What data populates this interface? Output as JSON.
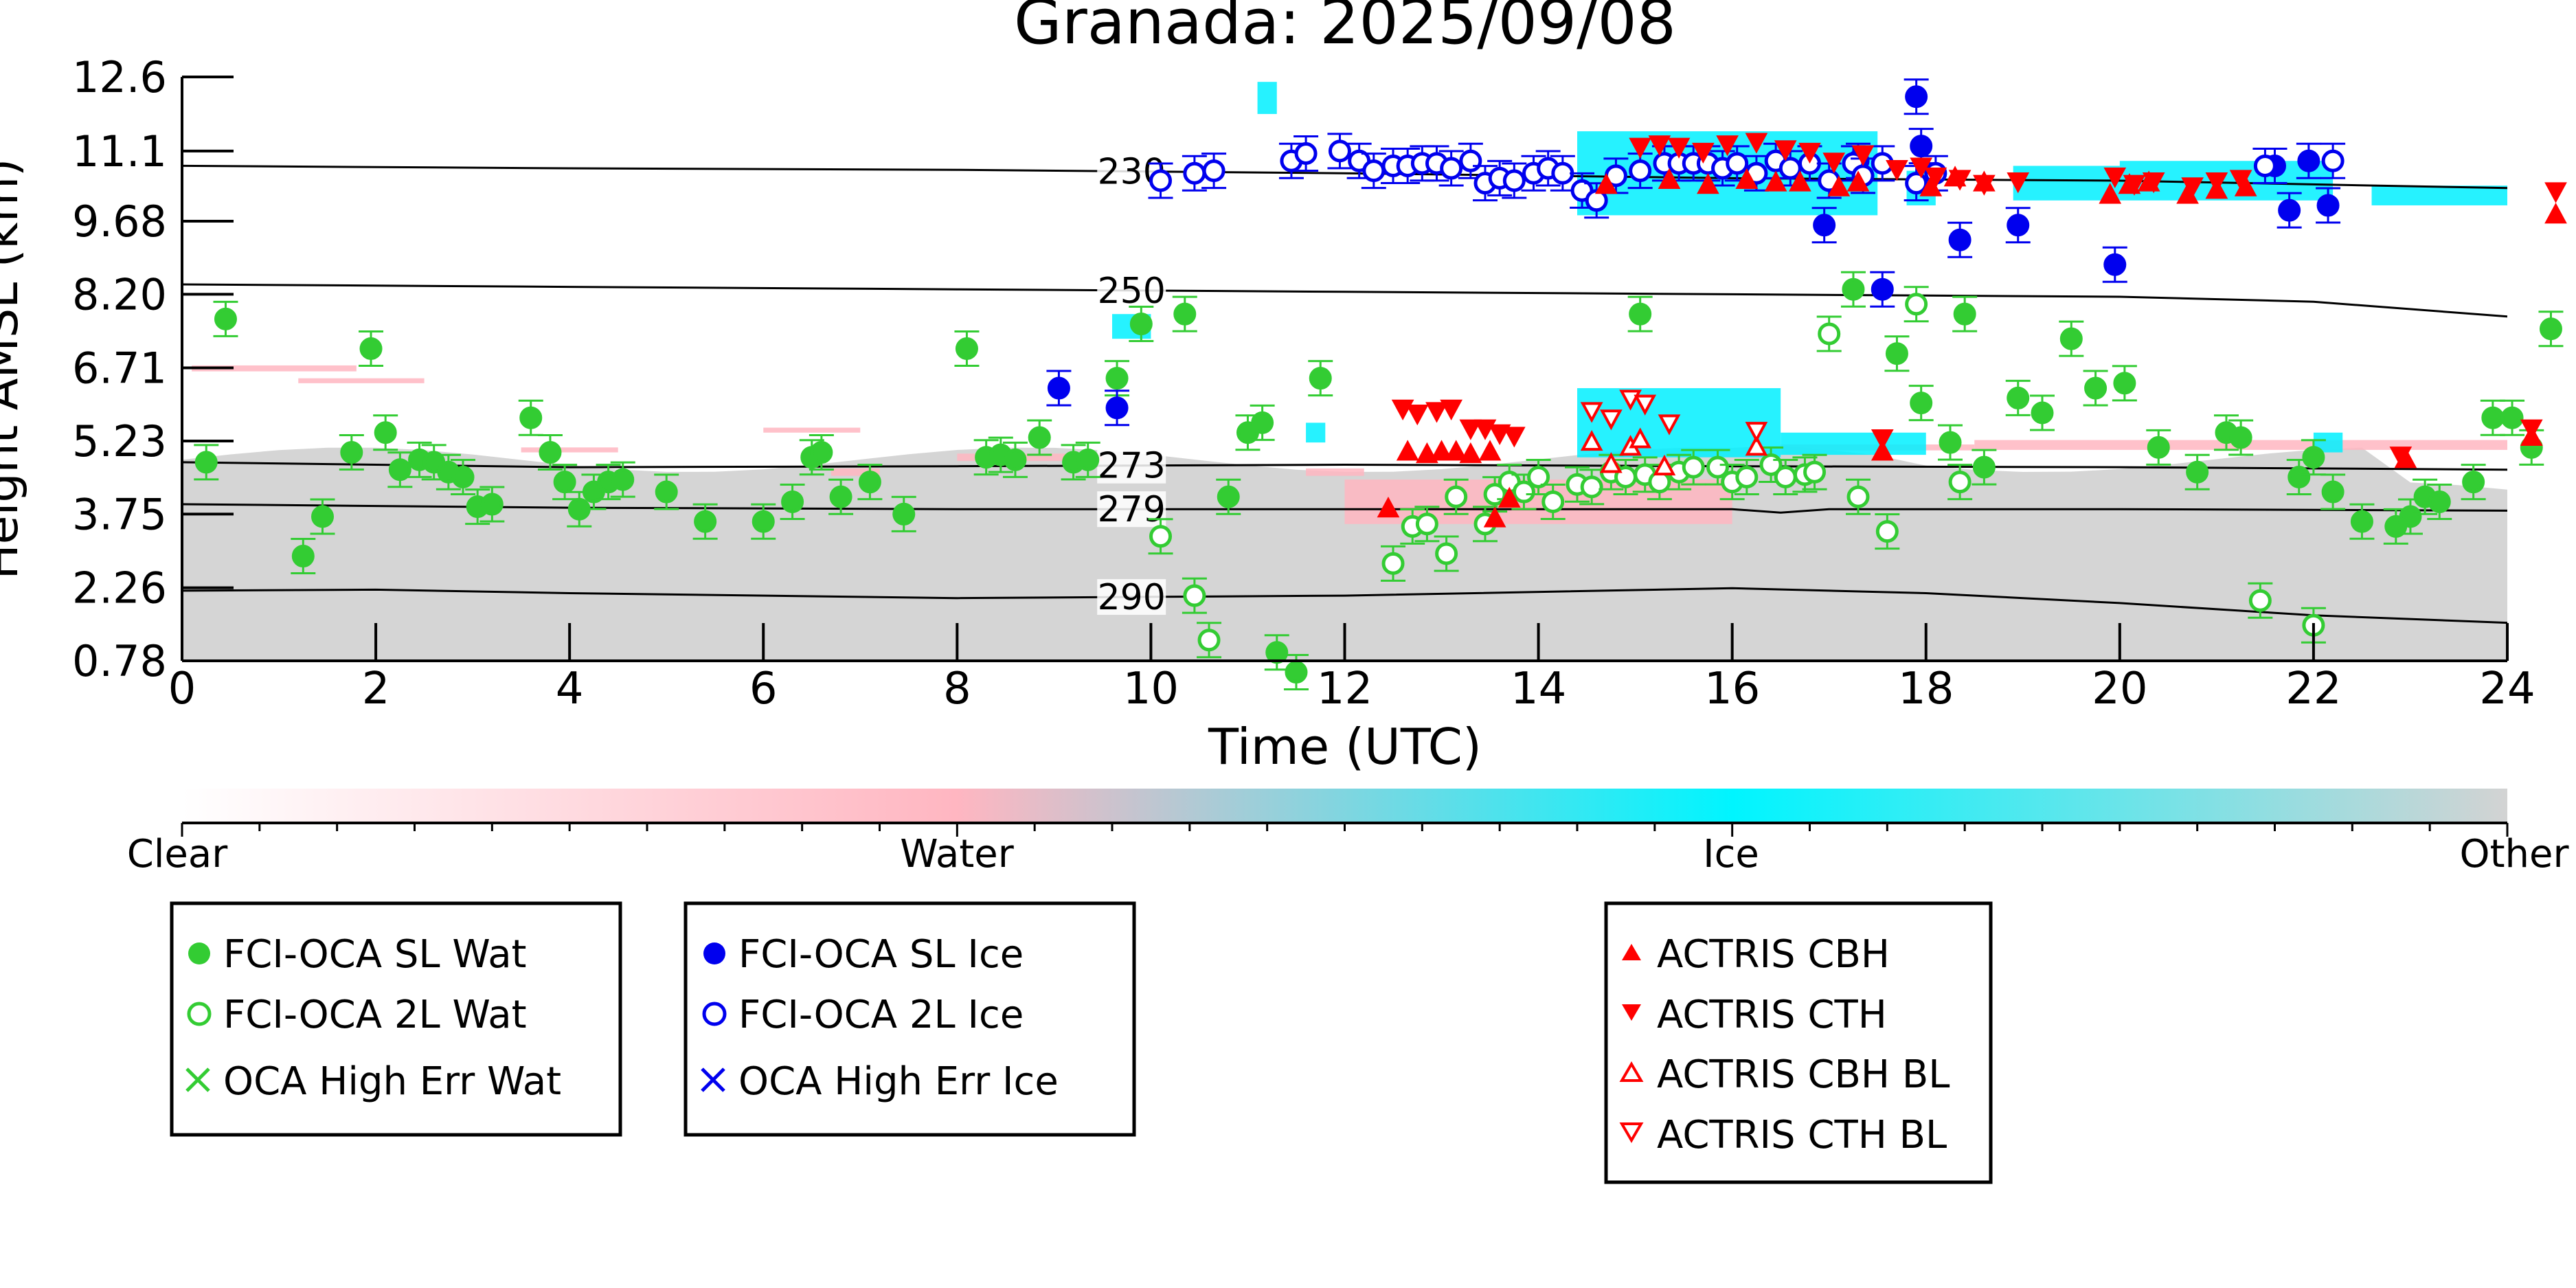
{
  "chart_data": {
    "type": "scatter",
    "title": "Granada: 2025/09/08",
    "xlabel": "Time (UTC)",
    "ylabel": "Height AMSL (km)",
    "xlim": [
      0,
      24
    ],
    "ylim": [
      0.78,
      12.6
    ],
    "x_ticks": [
      "0",
      "2",
      "4",
      "6",
      "8",
      "10",
      "12",
      "14",
      "16",
      "18",
      "20",
      "22",
      "24"
    ],
    "y_ticks": [
      "12.6",
      "11.1",
      "9.68",
      "8.20",
      "6.71",
      "5.23",
      "3.75",
      "2.26",
      "0.78"
    ],
    "grid": false,
    "colorbar": {
      "labels": [
        "Clear",
        "Water",
        "Ice",
        "Other"
      ],
      "stops": [
        "#ffffff",
        "#ffb6c1",
        "#00f5ff",
        "#d3d3d3"
      ]
    },
    "colors": {
      "water": "#33cc33",
      "ice": "#0000ee",
      "actris": "#ff0000",
      "background_other": "#d3d3d3",
      "background_water": "#ffb6c1",
      "background_ice": "#00f0ff"
    },
    "isotherms": [
      {
        "label": "230",
        "points": [
          [
            0,
            10.8
          ],
          [
            4,
            10.75
          ],
          [
            8,
            10.72
          ],
          [
            12,
            10.65
          ],
          [
            16,
            10.55
          ],
          [
            20,
            10.5
          ],
          [
            24,
            10.35
          ]
        ]
      },
      {
        "label": "250",
        "points": [
          [
            0,
            8.4
          ],
          [
            4,
            8.35
          ],
          [
            8,
            8.3
          ],
          [
            12,
            8.25
          ],
          [
            16,
            8.2
          ],
          [
            20,
            8.15
          ],
          [
            22,
            8.05
          ],
          [
            24,
            7.75
          ]
        ]
      },
      {
        "label": "273",
        "points": [
          [
            0,
            4.8
          ],
          [
            4,
            4.7
          ],
          [
            8,
            4.72
          ],
          [
            12,
            4.75
          ],
          [
            16,
            4.72
          ],
          [
            20,
            4.7
          ],
          [
            24,
            4.65
          ]
        ]
      },
      {
        "label": "279",
        "points": [
          [
            0,
            3.95
          ],
          [
            4,
            3.88
          ],
          [
            8,
            3.85
          ],
          [
            12,
            3.85
          ],
          [
            16,
            3.85
          ],
          [
            16.5,
            3.78
          ],
          [
            17,
            3.85
          ],
          [
            20,
            3.85
          ],
          [
            24,
            3.82
          ]
        ]
      },
      {
        "label": "290",
        "points": [
          [
            0,
            2.2
          ],
          [
            2,
            2.22
          ],
          [
            4,
            2.15
          ],
          [
            8,
            2.05
          ],
          [
            12,
            2.1
          ],
          [
            16,
            2.25
          ],
          [
            18,
            2.15
          ],
          [
            20,
            1.95
          ],
          [
            22,
            1.7
          ],
          [
            24,
            1.55
          ]
        ]
      }
    ],
    "series": [
      {
        "name": "FCI-OCA SL Wat",
        "points": [
          [
            0.25,
            4.8
          ],
          [
            0.45,
            7.7
          ],
          [
            1.25,
            2.9
          ],
          [
            1.45,
            3.7
          ],
          [
            1.75,
            5.0
          ],
          [
            1.95,
            7.1
          ],
          [
            2.1,
            5.4
          ],
          [
            2.25,
            4.65
          ],
          [
            2.45,
            4.85
          ],
          [
            2.6,
            4.8
          ],
          [
            2.75,
            4.6
          ],
          [
            2.9,
            4.5
          ],
          [
            3.05,
            3.9
          ],
          [
            3.2,
            3.95
          ],
          [
            3.6,
            5.7
          ],
          [
            3.8,
            5.0
          ],
          [
            3.95,
            4.4
          ],
          [
            4.1,
            3.85
          ],
          [
            4.25,
            4.2
          ],
          [
            4.4,
            4.4
          ],
          [
            4.55,
            4.45
          ],
          [
            5.0,
            4.2
          ],
          [
            5.4,
            3.6
          ],
          [
            6.0,
            3.6
          ],
          [
            6.3,
            4.0
          ],
          [
            6.5,
            4.9
          ],
          [
            6.6,
            5.0
          ],
          [
            6.8,
            4.1
          ],
          [
            7.1,
            4.4
          ],
          [
            7.45,
            3.75
          ],
          [
            8.1,
            7.1
          ],
          [
            8.3,
            4.9
          ],
          [
            8.45,
            4.95
          ],
          [
            8.6,
            4.85
          ],
          [
            8.85,
            5.3
          ],
          [
            9.2,
            4.8
          ],
          [
            9.35,
            4.85
          ],
          [
            9.65,
            6.5
          ],
          [
            9.9,
            7.6
          ],
          [
            10.35,
            7.8
          ],
          [
            10.8,
            4.1
          ],
          [
            11.0,
            5.4
          ],
          [
            11.15,
            5.6
          ],
          [
            11.3,
            0.95
          ],
          [
            11.5,
            0.55
          ],
          [
            11.75,
            6.5
          ],
          [
            15.05,
            7.8
          ],
          [
            17.25,
            8.3
          ],
          [
            17.7,
            7.0
          ],
          [
            17.95,
            6.0
          ],
          [
            18.25,
            5.2
          ],
          [
            18.4,
            7.8
          ],
          [
            18.6,
            4.7
          ],
          [
            18.95,
            6.1
          ],
          [
            19.2,
            5.8
          ],
          [
            19.5,
            7.3
          ],
          [
            19.75,
            6.3
          ],
          [
            20.05,
            6.4
          ],
          [
            20.4,
            5.1
          ],
          [
            20.8,
            4.6
          ],
          [
            21.1,
            5.4
          ],
          [
            21.25,
            5.3
          ],
          [
            21.85,
            4.5
          ],
          [
            22.0,
            4.9
          ],
          [
            22.2,
            4.2
          ],
          [
            22.5,
            3.6
          ],
          [
            22.85,
            3.5
          ],
          [
            23.0,
            3.7
          ],
          [
            23.15,
            4.1
          ],
          [
            23.3,
            4.0
          ],
          [
            23.65,
            4.4
          ],
          [
            23.85,
            5.7
          ],
          [
            24.05,
            5.7
          ],
          [
            24.25,
            5.1
          ],
          [
            24.45,
            7.5
          ]
        ]
      },
      {
        "name": "FCI-OCA 2L Wat",
        "points": [
          [
            10.1,
            3.3
          ],
          [
            10.45,
            2.1
          ],
          [
            10.6,
            1.2
          ],
          [
            12.5,
            2.75
          ],
          [
            12.7,
            3.5
          ],
          [
            12.85,
            3.55
          ],
          [
            13.05,
            2.95
          ],
          [
            13.15,
            4.1
          ],
          [
            13.45,
            3.55
          ],
          [
            13.55,
            4.15
          ],
          [
            13.7,
            4.4
          ],
          [
            13.85,
            4.2
          ],
          [
            14.0,
            4.5
          ],
          [
            14.15,
            4.0
          ],
          [
            14.4,
            4.35
          ],
          [
            14.55,
            4.3
          ],
          [
            14.75,
            4.6
          ],
          [
            14.9,
            4.5
          ],
          [
            15.1,
            4.55
          ],
          [
            15.25,
            4.4
          ],
          [
            15.45,
            4.6
          ],
          [
            15.6,
            4.7
          ],
          [
            15.85,
            4.7
          ],
          [
            16.0,
            4.4
          ],
          [
            16.15,
            4.5
          ],
          [
            16.4,
            4.75
          ],
          [
            16.55,
            4.5
          ],
          [
            16.75,
            4.55
          ],
          [
            16.85,
            4.6
          ],
          [
            17.0,
            7.4
          ],
          [
            17.3,
            4.1
          ],
          [
            17.6,
            3.4
          ],
          [
            17.9,
            8.0
          ],
          [
            18.35,
            4.4
          ],
          [
            21.45,
            2.0
          ],
          [
            22.0,
            1.5
          ]
        ]
      },
      {
        "name": "FCI-OCA SL Ice",
        "points": [
          [
            9.05,
            6.3
          ],
          [
            9.65,
            5.9
          ],
          [
            16.95,
            9.6
          ],
          [
            17.3,
            10.9
          ],
          [
            17.55,
            8.3
          ],
          [
            17.9,
            12.2
          ],
          [
            17.95,
            11.2
          ],
          [
            18.35,
            9.3
          ],
          [
            18.95,
            9.6
          ],
          [
            19.95,
            8.8
          ],
          [
            21.6,
            10.8
          ],
          [
            21.75,
            9.9
          ],
          [
            21.95,
            10.9
          ],
          [
            22.15,
            10.0
          ]
        ]
      },
      {
        "name": "FCI-OCA 2L Ice",
        "points": [
          [
            10.1,
            10.5
          ],
          [
            10.45,
            10.65
          ],
          [
            10.65,
            10.7
          ],
          [
            11.45,
            10.9
          ],
          [
            11.6,
            11.05
          ],
          [
            11.95,
            11.1
          ],
          [
            12.15,
            10.9
          ],
          [
            12.3,
            10.7
          ],
          [
            12.5,
            10.8
          ],
          [
            12.65,
            10.8
          ],
          [
            12.8,
            10.85
          ],
          [
            12.95,
            10.85
          ],
          [
            13.1,
            10.75
          ],
          [
            13.3,
            10.9
          ],
          [
            13.45,
            10.45
          ],
          [
            13.6,
            10.55
          ],
          [
            13.75,
            10.5
          ],
          [
            13.95,
            10.65
          ],
          [
            14.1,
            10.75
          ],
          [
            14.25,
            10.65
          ],
          [
            14.45,
            10.3
          ],
          [
            14.6,
            10.1
          ],
          [
            14.8,
            10.6
          ],
          [
            15.05,
            10.7
          ],
          [
            15.3,
            10.85
          ],
          [
            15.45,
            10.85
          ],
          [
            15.6,
            10.85
          ],
          [
            15.75,
            10.85
          ],
          [
            15.9,
            10.75
          ],
          [
            16.05,
            10.85
          ],
          [
            16.25,
            10.65
          ],
          [
            16.45,
            10.9
          ],
          [
            16.6,
            10.75
          ],
          [
            16.8,
            10.85
          ],
          [
            17.0,
            10.5
          ],
          [
            17.25,
            10.85
          ],
          [
            17.35,
            10.6
          ],
          [
            17.55,
            10.85
          ],
          [
            17.9,
            10.45
          ],
          [
            18.1,
            10.65
          ],
          [
            21.5,
            10.8
          ],
          [
            22.2,
            10.9
          ]
        ]
      },
      {
        "name": "ACTRIS CBH",
        "points": [
          [
            12.45,
            3.85
          ],
          [
            12.65,
            5.0
          ],
          [
            12.85,
            4.95
          ],
          [
            13.0,
            5.0
          ],
          [
            13.15,
            5.0
          ],
          [
            13.3,
            4.95
          ],
          [
            13.5,
            5.0
          ],
          [
            13.55,
            3.65
          ],
          [
            13.7,
            4.05
          ],
          [
            14.7,
            10.4
          ],
          [
            15.35,
            10.5
          ],
          [
            15.75,
            10.4
          ],
          [
            16.15,
            10.5
          ],
          [
            16.45,
            10.45
          ],
          [
            16.7,
            10.45
          ],
          [
            17.1,
            10.35
          ],
          [
            17.3,
            10.45
          ],
          [
            17.55,
            5.0
          ],
          [
            18.05,
            10.35
          ],
          [
            18.3,
            10.55
          ],
          [
            18.6,
            10.45
          ],
          [
            19.9,
            10.2
          ],
          [
            20.1,
            10.4
          ],
          [
            20.3,
            10.45
          ],
          [
            20.7,
            10.2
          ],
          [
            21.0,
            10.3
          ],
          [
            21.3,
            10.35
          ],
          [
            22.95,
            4.85
          ],
          [
            24.25,
            5.3
          ],
          [
            24.5,
            9.8
          ]
        ]
      },
      {
        "name": "ACTRIS CTH",
        "points": [
          [
            12.6,
            5.9
          ],
          [
            12.75,
            5.8
          ],
          [
            12.95,
            5.85
          ],
          [
            13.1,
            5.9
          ],
          [
            13.3,
            5.5
          ],
          [
            13.45,
            5.5
          ],
          [
            13.6,
            5.4
          ],
          [
            13.75,
            5.35
          ],
          [
            15.05,
            11.2
          ],
          [
            15.25,
            11.25
          ],
          [
            15.45,
            11.2
          ],
          [
            15.7,
            11.1
          ],
          [
            15.95,
            11.25
          ],
          [
            16.25,
            11.3
          ],
          [
            16.55,
            11.15
          ],
          [
            16.8,
            11.1
          ],
          [
            17.05,
            10.9
          ],
          [
            17.35,
            11.05
          ],
          [
            17.55,
            5.3
          ],
          [
            17.7,
            10.75
          ],
          [
            17.95,
            10.8
          ],
          [
            18.1,
            10.6
          ],
          [
            18.35,
            10.55
          ],
          [
            18.6,
            10.45
          ],
          [
            18.95,
            10.5
          ],
          [
            19.95,
            10.6
          ],
          [
            20.15,
            10.45
          ],
          [
            20.35,
            10.5
          ],
          [
            20.75,
            10.4
          ],
          [
            21.0,
            10.5
          ],
          [
            21.25,
            10.55
          ],
          [
            22.9,
            4.95
          ],
          [
            24.25,
            5.5
          ],
          [
            24.5,
            10.3
          ]
        ]
      },
      {
        "name": "ACTRIS CBH BL",
        "points": [
          [
            14.55,
            5.2
          ],
          [
            14.75,
            4.75
          ],
          [
            14.95,
            5.1
          ],
          [
            15.05,
            5.25
          ],
          [
            15.3,
            4.7
          ],
          [
            16.25,
            5.1
          ]
        ]
      },
      {
        "name": "ACTRIS CTH BL",
        "points": [
          [
            14.55,
            5.85
          ],
          [
            14.75,
            5.7
          ],
          [
            14.95,
            6.1
          ],
          [
            15.1,
            6.0
          ],
          [
            15.35,
            5.6
          ],
          [
            16.25,
            5.45
          ]
        ]
      }
    ],
    "legends": [
      {
        "entries": [
          "FCI-OCA SL Wat",
          "FCI-OCA 2L Wat",
          "OCA High Err Wat"
        ]
      },
      {
        "entries": [
          "FCI-OCA SL Ice",
          "FCI-OCA 2L Ice",
          "OCA High Err Ice"
        ]
      },
      {
        "entries": [
          "ACTRIS CBH",
          "ACTRIS CTH",
          "ACTRIS CBH BL",
          "ACTRIS CTH BL"
        ]
      }
    ]
  }
}
